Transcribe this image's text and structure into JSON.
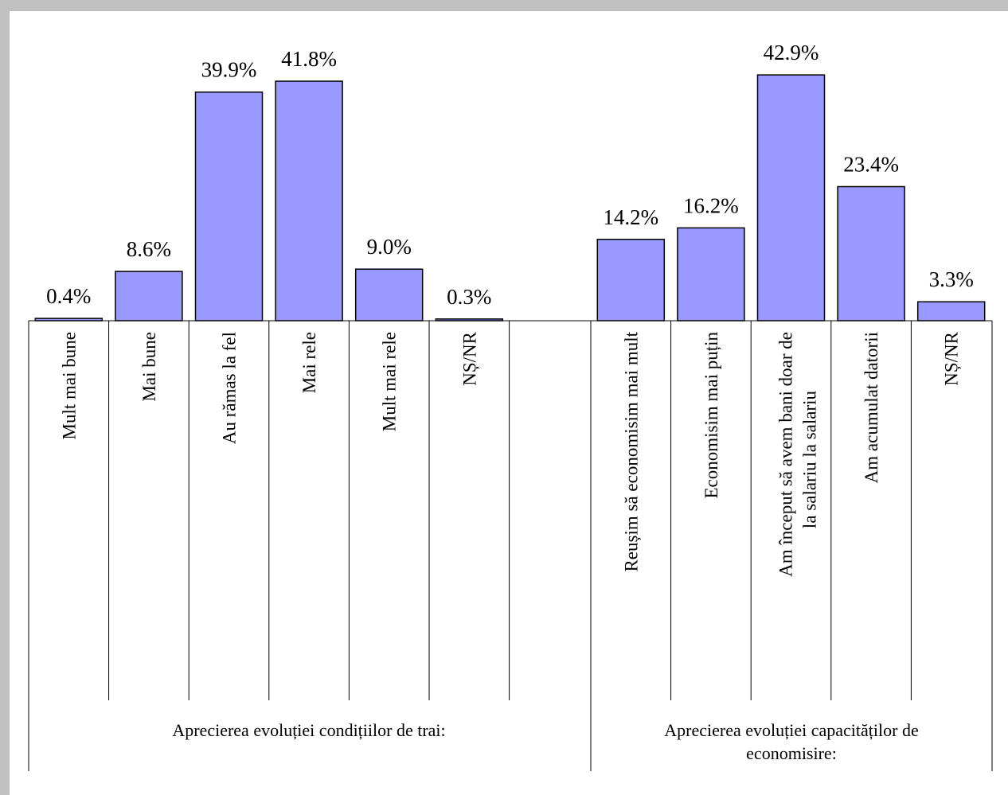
{
  "chart_data": {
    "type": "bar",
    "bar_color": "#9999ff",
    "ylim": [
      0,
      45
    ],
    "grid": false,
    "legend": "none",
    "groups": [
      {
        "label": "Aprecierea evoluției condițiilor de trai:",
        "categories": [
          "Mult mai bune",
          "Mai bune",
          "Au rămas la fel",
          "Mai rele",
          "Mult mai rele",
          "NȘ/NR"
        ],
        "values": [
          0.4,
          8.6,
          39.9,
          41.8,
          9.0,
          0.3
        ],
        "value_labels": [
          "0.4%",
          "8.6%",
          "39.9%",
          "41.8%",
          "9.0%",
          "0.3%"
        ]
      },
      {
        "label": "Aprecierea evoluției capacităților de economisire:",
        "categories": [
          "Reușim să economisim mai mult",
          "Economisim mai puțin",
          "Am început să avem bani doar de la salariu la salariu",
          "Am acumulat datorii",
          "NȘ/NR"
        ],
        "values": [
          14.2,
          16.2,
          42.9,
          23.4,
          3.3
        ],
        "value_labels": [
          "14.2%",
          "16.2%",
          "42.9%",
          "23.4%",
          "3.3%"
        ]
      }
    ]
  }
}
